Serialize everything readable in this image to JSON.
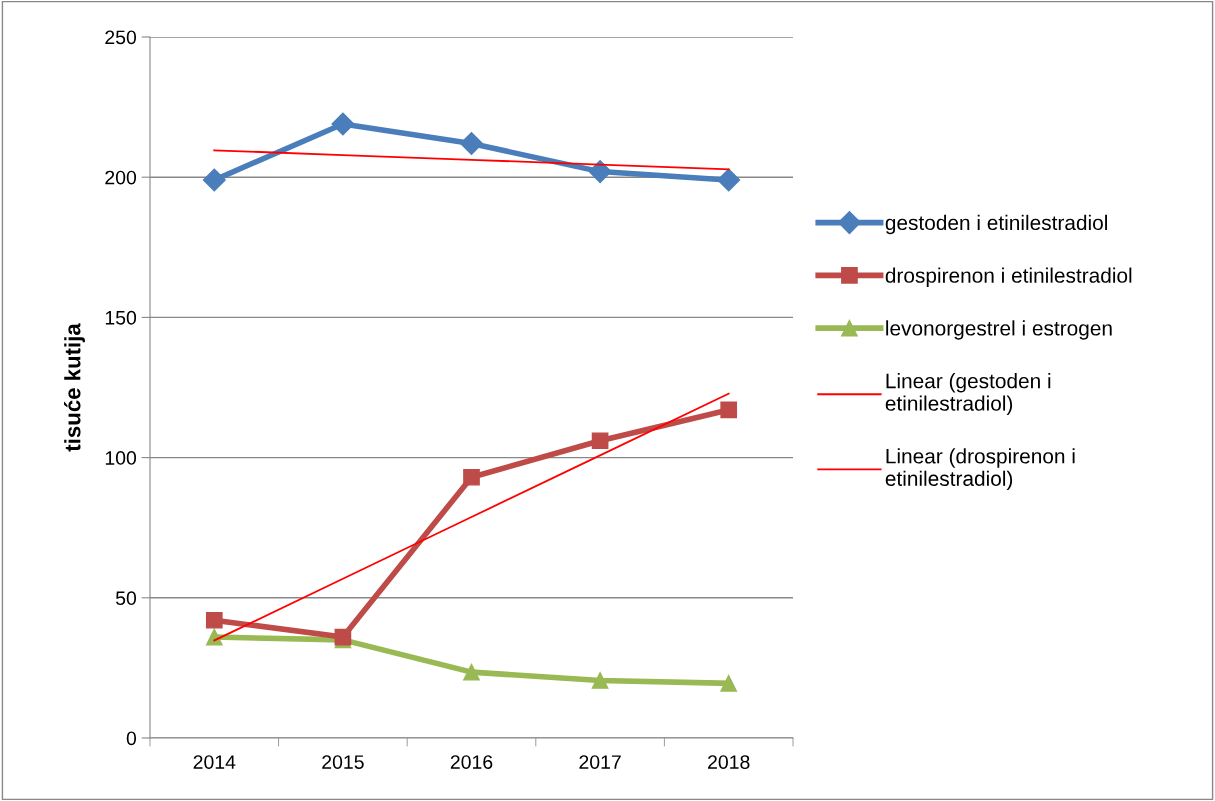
{
  "chart_data": {
    "type": "line",
    "ylabel": "tisuće kutija",
    "categories": [
      "2014",
      "2015",
      "2016",
      "2017",
      "2018"
    ],
    "series": [
      {
        "name": "gestoden i etinilestradiol",
        "color": "#4a7ebb",
        "marker": "diamond",
        "values": [
          199,
          219,
          212,
          202,
          199
        ]
      },
      {
        "name": "drospirenon i etinilestradiol",
        "color": "#be4b48",
        "marker": "square",
        "values": [
          42,
          36,
          93,
          106,
          117
        ]
      },
      {
        "name": "levonorgestrel i estrogen",
        "color": "#98b954",
        "marker": "triangle",
        "values": [
          36,
          35,
          23.5,
          20.5,
          19.5
        ]
      },
      {
        "name": "Linear (gestoden i etinilestradiol)",
        "color": "#ff0000",
        "marker": "none",
        "values": [
          209.6,
          207.9,
          206.2,
          204.5,
          202.8
        ]
      },
      {
        "name": "Linear (drospirenon i etinilestradiol)",
        "color": "#ff0000",
        "marker": "none",
        "values": [
          34.8,
          56.8,
          78.8,
          100.8,
          122.8
        ]
      }
    ],
    "ylim": [
      0,
      250
    ],
    "yticks": [
      0,
      50,
      100,
      150,
      200,
      250
    ],
    "grid": "y",
    "legend": "right"
  }
}
